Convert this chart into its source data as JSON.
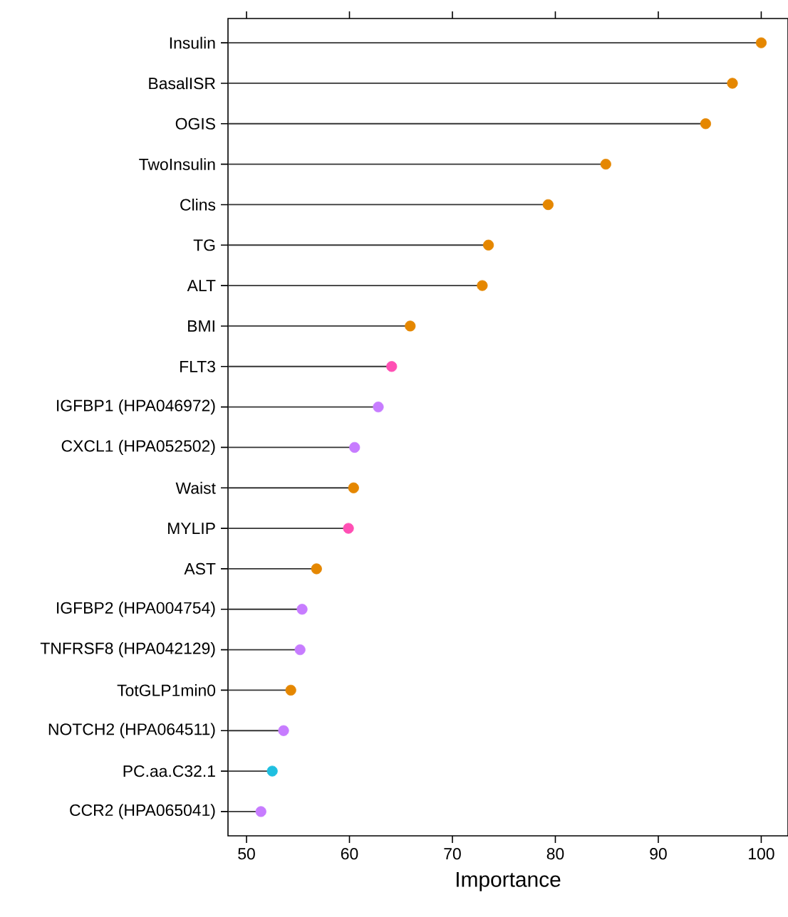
{
  "chart_data": {
    "type": "lollipop",
    "orientation": "horizontal",
    "xlabel": "Importance",
    "categories": [
      "Insulin",
      "BasalISR",
      "OGIS",
      "TwoInsulin",
      "Clins",
      "TG",
      "ALT",
      "BMI",
      "FLT3",
      "IGFBP1 (HPA046972)",
      "CXCL1 (HPA052502)",
      "Waist",
      "MYLIP",
      "AST",
      "IGFBP2 (HPA004754)",
      "TNFRSF8 (HPA042129)",
      "TotGLP1min0",
      "NOTCH2 (HPA064511)",
      "PC.aa.C32.1",
      "CCR2 (HPA065041)"
    ],
    "values": [
      100.0,
      97.2,
      94.6,
      84.9,
      79.3,
      73.5,
      72.9,
      65.9,
      64.1,
      62.8,
      60.5,
      60.4,
      59.9,
      56.8,
      55.4,
      55.2,
      54.3,
      53.6,
      52.5,
      51.4
    ],
    "colors": [
      "#e58700",
      "#e58700",
      "#e58700",
      "#e58700",
      "#e58700",
      "#e58700",
      "#e58700",
      "#e58700",
      "#ff4fb4",
      "#c77cff",
      "#c77cff",
      "#e58700",
      "#ff4fb4",
      "#e58700",
      "#c77cff",
      "#c77cff",
      "#e58700",
      "#c77cff",
      "#1fbfe0",
      "#c77cff"
    ],
    "xlim": [
      48.2,
      102.6
    ],
    "xticks": [
      50,
      60,
      70,
      80,
      90,
      100
    ]
  }
}
